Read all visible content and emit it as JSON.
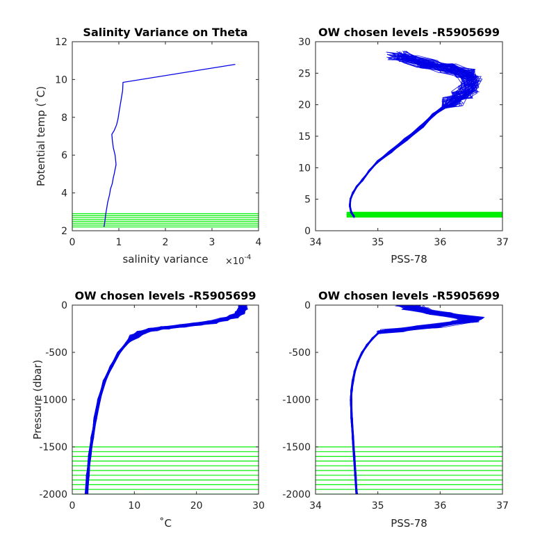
{
  "colors": {
    "profile": "#0000e6",
    "levels": "#00ee00",
    "axis": "#262626"
  },
  "chart_data": [
    {
      "id": "p1",
      "type": "line",
      "title": "Salinity Variance on Theta",
      "xlabel": "salinity variance",
      "ylabel": "Potential temp (˚C)",
      "x_multiplier": "×10^-4",
      "xlim": [
        0,
        4
      ],
      "ylim": [
        2,
        12
      ],
      "xticks": [
        "0",
        "1",
        "2",
        "3",
        "4"
      ],
      "yticks": [
        "2",
        "4",
        "6",
        "8",
        "10",
        "12"
      ],
      "series": [
        {
          "x": [
            0.68,
            0.7,
            0.72,
            0.74,
            0.76,
            0.8,
            0.82,
            0.86,
            0.88,
            0.9,
            0.94,
            0.92,
            0.88,
            0.86,
            0.85,
            0.9,
            0.95,
            0.98,
            1.0,
            1.02,
            1.04,
            1.06,
            1.08,
            1.09,
            3.5
          ],
          "y": [
            2.2,
            2.5,
            2.9,
            3.2,
            3.5,
            3.9,
            4.2,
            4.5,
            4.8,
            5.0,
            5.5,
            6.0,
            6.4,
            6.8,
            7.1,
            7.3,
            7.6,
            7.9,
            8.2,
            8.5,
            8.8,
            9.1,
            9.4,
            9.85,
            10.8
          ]
        }
      ],
      "chosen_levels": [
        2.2,
        2.3,
        2.4,
        2.5,
        2.6,
        2.7,
        2.8,
        2.9
      ]
    },
    {
      "id": "p2",
      "type": "line",
      "title": "OW chosen levels -R5905699",
      "xlabel": "PSS-78",
      "ylabel": "",
      "xlim": [
        34,
        37
      ],
      "ylim": [
        0,
        30
      ],
      "xticks": [
        "34",
        "35",
        "36",
        "37"
      ],
      "yticks": [
        "0",
        "5",
        "10",
        "15",
        "20",
        "25",
        "30"
      ],
      "mean_profile": {
        "x": [
          34.62,
          34.57,
          34.55,
          34.56,
          34.6,
          34.66,
          34.75,
          34.86,
          35.0,
          35.2,
          35.45,
          35.7,
          35.9,
          36.05,
          36.2,
          36.35,
          36.45,
          36.5,
          36.4,
          36.1,
          35.8,
          35.5,
          35.3
        ],
        "y": [
          2.2,
          3.0,
          4.0,
          5.0,
          6.0,
          7.0,
          8.0,
          9.5,
          11.0,
          12.5,
          14.5,
          16.5,
          18.5,
          19.5,
          20.5,
          21.5,
          22.5,
          24.0,
          25.0,
          25.8,
          26.5,
          27.2,
          27.8
        ]
      },
      "chosen_levels": [
        2.2,
        2.3,
        2.4,
        2.5,
        2.6,
        2.7,
        2.8,
        2.9
      ]
    },
    {
      "id": "p3",
      "type": "line",
      "title": "OW chosen levels -R5905699",
      "xlabel": "˚C",
      "ylabel": "Pressure (dbar)",
      "xlim": [
        0,
        30
      ],
      "ylim": [
        -2000,
        0
      ],
      "xticks": [
        "0",
        "10",
        "20",
        "30"
      ],
      "yticks": [
        "-2000",
        "-1500",
        "-1000",
        "-500",
        "0"
      ],
      "mean_profile": {
        "x": [
          2.3,
          2.5,
          2.8,
          3.2,
          3.7,
          4.3,
          5.2,
          6.3,
          7.5,
          8.8,
          10.0,
          11.2,
          13.0,
          15.0,
          17.5,
          20.0,
          22.5,
          24.5,
          26.0,
          27.0,
          27.5,
          27.5
        ],
        "y": [
          -2000,
          -1800,
          -1600,
          -1400,
          -1200,
          -1000,
          -800,
          -650,
          -500,
          -400,
          -330,
          -290,
          -260,
          -240,
          -220,
          -200,
          -180,
          -150,
          -120,
          -80,
          -40,
          0
        ]
      },
      "chosen_levels": [
        -1500,
        -1550,
        -1600,
        -1650,
        -1700,
        -1750,
        -1800,
        -1850,
        -1900,
        -1950,
        -2000
      ]
    },
    {
      "id": "p4",
      "type": "line",
      "title": "OW chosen levels -R5905699",
      "xlabel": "PSS-78",
      "ylabel": "",
      "xlim": [
        34,
        37
      ],
      "ylim": [
        -2000,
        0
      ],
      "xticks": [
        "34",
        "35",
        "36",
        "37"
      ],
      "yticks": [
        "-2000",
        "-1500",
        "-1000",
        "-500",
        "0"
      ],
      "mean_profile": {
        "x": [
          34.66,
          34.64,
          34.62,
          34.6,
          34.58,
          34.57,
          34.58,
          34.6,
          34.63,
          34.68,
          34.75,
          34.83,
          34.92,
          35.0,
          35.2,
          35.8,
          36.4,
          36.5,
          36.0,
          35.6,
          35.5
        ],
        "y": [
          -2000,
          -1800,
          -1600,
          -1400,
          -1200,
          -1000,
          -900,
          -800,
          -700,
          -600,
          -500,
          -420,
          -350,
          -300,
          -270,
          -230,
          -170,
          -140,
          -90,
          -40,
          0
        ]
      },
      "chosen_levels": [
        -1500,
        -1550,
        -1600,
        -1650,
        -1700,
        -1750,
        -1800,
        -1850,
        -1900,
        -1950,
        -2000
      ]
    }
  ]
}
